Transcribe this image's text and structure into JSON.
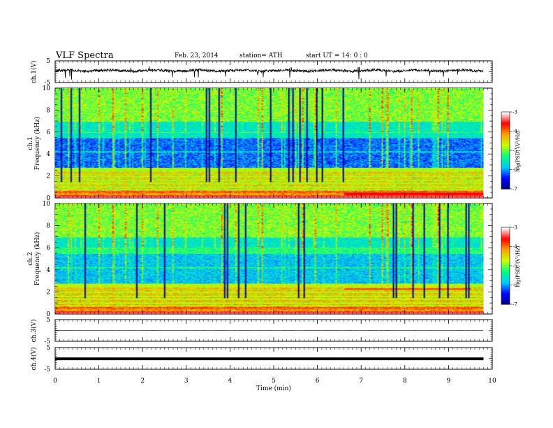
{
  "header": {
    "title": "VLF  Spectra",
    "date": "Feb. 23, 2014",
    "station": "station= ATH",
    "start": "start  UT  =   14: 0  : 0"
  },
  "chart_data": [
    {
      "id": "ch1-waveform",
      "type": "line",
      "ylabel": "ch.1(V)",
      "ylim": [
        -5,
        5
      ],
      "yticks": [
        "5",
        "-5"
      ],
      "x_range_min": [
        0,
        9.8
      ],
      "level_v": 0.5,
      "color": "#000000"
    },
    {
      "id": "ch1-spectrogram",
      "type": "heatmap",
      "ylabel": "ch.1\nFrequency  (kHz)",
      "ylabel_lines": [
        "ch.1",
        "Frequency  (kHz)"
      ],
      "ylim": [
        0,
        10
      ],
      "yticks": [
        "0",
        "2",
        "4",
        "6",
        "8",
        "10"
      ],
      "colorbar": {
        "label": "log(PSD) (V²/Hz)",
        "range": [
          -7,
          -3
        ],
        "ticks": [
          "-3",
          "-4",
          "-5",
          "-6",
          "-7"
        ],
        "colors": [
          "#000080",
          "#0000ff",
          "#00c8ff",
          "#00ff80",
          "#c8ff00",
          "#ffa000",
          "#ff0000",
          "#ffffff"
        ]
      }
    },
    {
      "id": "ch2-spectrogram",
      "type": "heatmap",
      "ylabel": "ch.2\nFrequency  (kHz)",
      "ylabel_lines": [
        "ch.2",
        "Frequency  (kHz)"
      ],
      "ylim": [
        0,
        10
      ],
      "yticks": [
        "0",
        "2",
        "4",
        "6",
        "8",
        "10"
      ],
      "colorbar": {
        "label": "log(PSD) (V²/Hz)",
        "range": [
          -7,
          -3
        ],
        "ticks": [
          "-3",
          "-4",
          "-5",
          "-6",
          "-7"
        ],
        "colors": [
          "#000080",
          "#0000ff",
          "#00c8ff",
          "#00ff80",
          "#c8ff00",
          "#ffa000",
          "#ff0000",
          "#ffffff"
        ]
      }
    },
    {
      "id": "ch3-waveform",
      "type": "line",
      "ylabel": "ch.3(V)",
      "ylim": [
        -5,
        5
      ],
      "yticks": [
        "5",
        "-5"
      ],
      "x_range_min": [
        0,
        9.8
      ],
      "level_v": 0.0,
      "color": "#000000"
    },
    {
      "id": "ch4-waveform",
      "type": "line",
      "ylabel": "ch.4(V)",
      "ylim": [
        -5,
        5
      ],
      "yticks": [
        "5",
        "-5"
      ],
      "x_range_min": [
        0,
        9.8
      ],
      "level_v": -0.2,
      "color": "#000000"
    }
  ],
  "x_axis": {
    "label": "Time  (min)",
    "range": [
      0,
      10
    ],
    "ticks": [
      "0",
      "1",
      "2",
      "3",
      "4",
      "5",
      "6",
      "7",
      "8",
      "9",
      "10"
    ]
  }
}
